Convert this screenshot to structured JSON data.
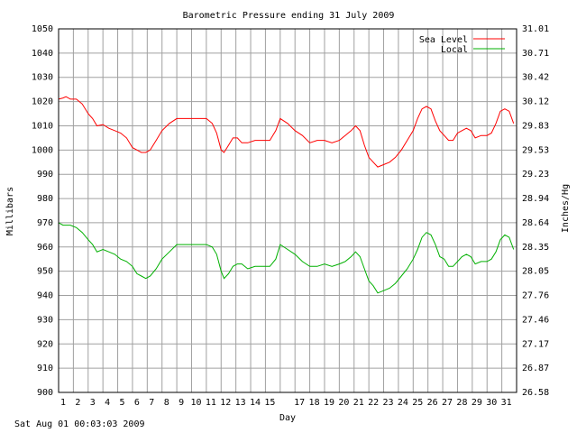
{
  "chart_data": {
    "type": "line",
    "title": "Barometric Pressure ending 31 July 2009",
    "xlabel": "Day",
    "ylabel": "Millibars",
    "ylabel_right": "Inches/Hg",
    "xlim": [
      1,
      32
    ],
    "ylim": [
      900,
      1050
    ],
    "x_ticks": [
      1,
      2,
      3,
      4,
      5,
      6,
      7,
      8,
      9,
      10,
      11,
      12,
      13,
      14,
      15,
      17,
      18,
      19,
      20,
      21,
      22,
      23,
      24,
      25,
      26,
      27,
      28,
      29,
      30,
      31
    ],
    "x_tick_labels": [
      "1",
      "2",
      "3",
      "4",
      "5",
      "6",
      "7",
      "8",
      "9",
      "10",
      "11",
      "12",
      "13",
      "14",
      "15",
      "17",
      "18",
      "19",
      "20",
      "21",
      "22",
      "23",
      "24",
      "25",
      "26",
      "27",
      "28",
      "29",
      "30",
      "31"
    ],
    "y_ticks": [
      900,
      910,
      920,
      930,
      940,
      950,
      960,
      970,
      980,
      990,
      1000,
      1010,
      1020,
      1030,
      1040,
      1050
    ],
    "y_tick_labels": [
      "900",
      "910",
      "920",
      "930",
      "940",
      "950",
      "960",
      "970",
      "980",
      "990",
      "1000",
      "1010",
      "1020",
      "1030",
      "1040",
      "1050"
    ],
    "y_right_tick_labels": [
      "26.58",
      "26.87",
      "27.17",
      "27.46",
      "27.76",
      "28.05",
      "28.35",
      "28.64",
      "28.94",
      "29.23",
      "29.53",
      "29.83",
      "30.12",
      "30.42",
      "30.71",
      "31.01"
    ],
    "grid": true,
    "legend_position": "top-right",
    "series": [
      {
        "name": "Sea Level",
        "color": "#ff0000",
        "x": [
          1,
          1.3,
          1.5,
          1.8,
          2.2,
          2.6,
          3,
          3.3,
          3.6,
          4,
          4.4,
          4.8,
          5.2,
          5.6,
          6,
          6.3,
          6.6,
          6.9,
          7.2,
          7.6,
          8,
          8.5,
          9,
          9.5,
          10,
          10.5,
          11,
          11.4,
          11.7,
          12,
          12.2,
          12.5,
          12.8,
          13.1,
          13.4,
          13.8,
          14.3,
          14.8,
          15.3,
          15.7,
          16,
          16.5,
          17,
          17.5,
          18,
          18.5,
          19,
          19.5,
          20,
          20.4,
          20.8,
          21.1,
          21.4,
          21.7,
          22,
          22.3,
          22.6,
          23,
          23.4,
          23.8,
          24.2,
          24.6,
          25,
          25.3,
          25.6,
          25.9,
          26.2,
          26.5,
          26.8,
          27.1,
          27.4,
          27.7,
          28,
          28.3,
          28.6,
          28.9,
          29.2,
          29.6,
          30,
          30.3,
          30.6,
          30.9,
          31.2,
          31.5,
          31.8
        ],
        "y": [
          1021,
          1021.5,
          1022,
          1021,
          1021,
          1019,
          1015,
          1013,
          1010,
          1010.5,
          1009,
          1008,
          1007,
          1005,
          1001,
          1000,
          999,
          999,
          1000,
          1004,
          1008,
          1011,
          1013,
          1013,
          1013,
          1013,
          1013,
          1011,
          1007,
          1000,
          999,
          1002,
          1005,
          1005,
          1003,
          1003,
          1004,
          1004,
          1004,
          1008,
          1013,
          1011,
          1008,
          1006,
          1003,
          1004,
          1004,
          1003,
          1004,
          1006,
          1008,
          1010,
          1008,
          1002,
          997,
          995,
          993,
          994,
          995,
          997,
          1000,
          1004,
          1008,
          1013,
          1017,
          1018,
          1017,
          1012,
          1008,
          1006,
          1004,
          1004,
          1007,
          1008,
          1009,
          1008,
          1005,
          1006,
          1006,
          1007,
          1011,
          1016,
          1017,
          1016,
          1011
        ]
      },
      {
        "name": "Local",
        "color": "#00b000",
        "x": [
          1,
          1.3,
          1.5,
          1.8,
          2.2,
          2.6,
          3,
          3.3,
          3.6,
          4,
          4.4,
          4.8,
          5.2,
          5.6,
          6,
          6.3,
          6.6,
          6.9,
          7.2,
          7.6,
          8,
          8.5,
          9,
          9.5,
          10,
          10.5,
          11,
          11.4,
          11.7,
          12,
          12.2,
          12.5,
          12.8,
          13.1,
          13.4,
          13.8,
          14.3,
          14.8,
          15.3,
          15.7,
          16,
          16.5,
          17,
          17.5,
          18,
          18.5,
          19,
          19.5,
          20,
          20.4,
          20.8,
          21.1,
          21.4,
          21.7,
          22,
          22.3,
          22.6,
          23,
          23.4,
          23.8,
          24.2,
          24.6,
          25,
          25.3,
          25.6,
          25.9,
          26.2,
          26.5,
          26.8,
          27.1,
          27.4,
          27.7,
          28,
          28.3,
          28.6,
          28.9,
          29.2,
          29.6,
          30,
          30.3,
          30.6,
          30.9,
          31.2,
          31.5,
          31.8
        ],
        "y": [
          970,
          969,
          969,
          969,
          968,
          966,
          963,
          961,
          958,
          959,
          958,
          957,
          955,
          954,
          952,
          949,
          948,
          947,
          948,
          951,
          955,
          958,
          961,
          961,
          961,
          961,
          961,
          960,
          957,
          950,
          947,
          949,
          952,
          953,
          953,
          951,
          952,
          952,
          952,
          955,
          961,
          959,
          957,
          954,
          952,
          952,
          953,
          952,
          953,
          954,
          956,
          958,
          956,
          951,
          946,
          944,
          941,
          942,
          943,
          945,
          948,
          951,
          955,
          959,
          964,
          966,
          965,
          961,
          956,
          955,
          952,
          952,
          954,
          956,
          957,
          956,
          953,
          954,
          954,
          955,
          958,
          963,
          965,
          964,
          959
        ]
      }
    ],
    "footer": "Sat Aug 01 00:03:03 2009"
  }
}
